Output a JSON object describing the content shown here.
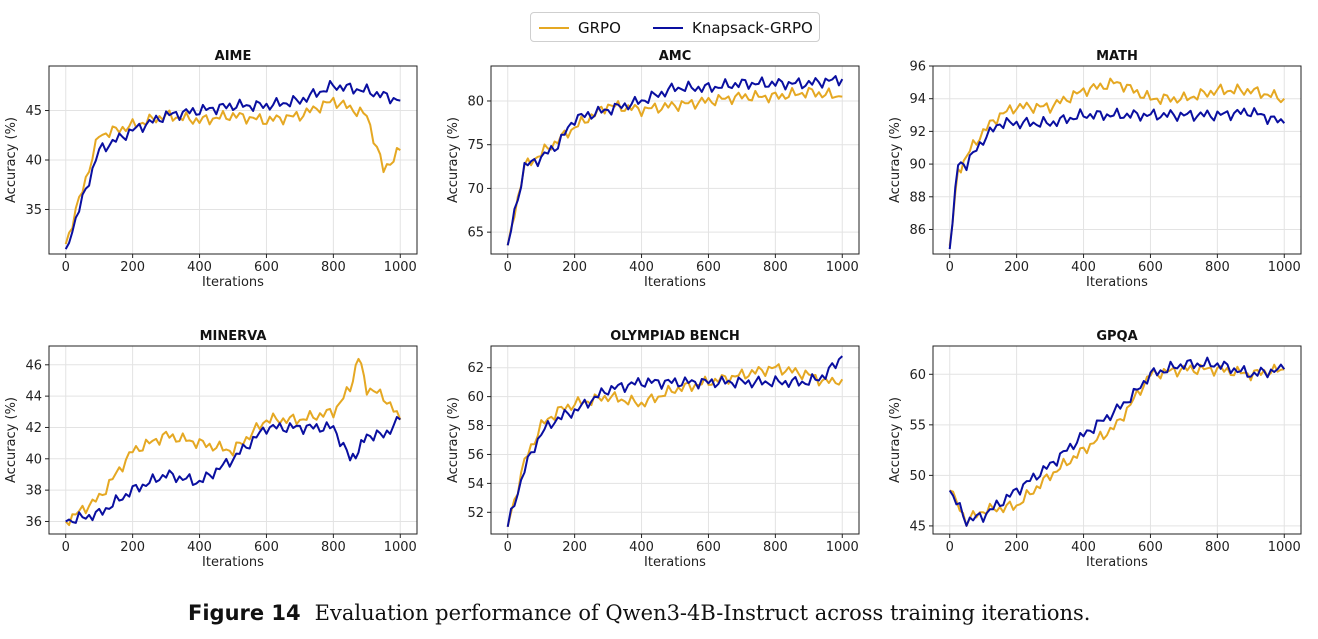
{
  "legend": {
    "items": [
      {
        "label": "GRPO",
        "color": "#E5A823"
      },
      {
        "label": "Knapsack-GRPO",
        "color": "#0A0FA0"
      }
    ]
  },
  "caption": {
    "label": "Figure 14",
    "text": "Evaluation performance of Qwen3-4B-Instruct across training iterations."
  },
  "chart_data": [
    {
      "type": "line",
      "title": "AIME",
      "xlabel": "Iterations",
      "ylabel": "Accuracy (%)",
      "xlim": [
        -50,
        1050
      ],
      "ylim": [
        30.5,
        49.5
      ],
      "xticks": [
        0,
        200,
        400,
        600,
        800,
        1000
      ],
      "yticks": [
        35,
        40,
        45
      ],
      "x": [
        0,
        100,
        200,
        300,
        400,
        500,
        600,
        700,
        800,
        900,
        950,
        1000
      ],
      "series": [
        {
          "name": "GRPO",
          "values": [
            31.5,
            42.5,
            43.5,
            44.5,
            44.0,
            44.5,
            44.0,
            44.5,
            46.0,
            44.5,
            39.0,
            41.0
          ]
        },
        {
          "name": "Knapsack-GRPO",
          "values": [
            31.0,
            41.0,
            43.0,
            44.5,
            45.0,
            45.5,
            45.5,
            46.0,
            47.5,
            47.0,
            46.5,
            46.0
          ]
        }
      ]
    },
    {
      "type": "line",
      "title": "AMC",
      "xlabel": "Iterations",
      "ylabel": "Accuracy (%)",
      "xlim": [
        -50,
        1050
      ],
      "ylim": [
        62.5,
        84.0
      ],
      "xticks": [
        0,
        200,
        400,
        600,
        800,
        1000
      ],
      "yticks": [
        65,
        70,
        75,
        80
      ],
      "x": [
        0,
        50,
        100,
        150,
        200,
        300,
        400,
        500,
        600,
        700,
        800,
        900,
        1000
      ],
      "series": [
        {
          "name": "GRPO",
          "values": [
            63.5,
            72.5,
            74.0,
            75.5,
            77.0,
            79.5,
            79.0,
            79.5,
            80.0,
            80.5,
            80.5,
            81.0,
            80.5
          ]
        },
        {
          "name": "Knapsack-GRPO",
          "values": [
            63.5,
            72.5,
            73.5,
            75.0,
            78.0,
            79.0,
            80.0,
            81.5,
            81.5,
            82.0,
            82.0,
            82.0,
            82.5
          ]
        }
      ]
    },
    {
      "type": "line",
      "title": "MATH",
      "xlabel": "Iterations",
      "ylabel": "Accuracy (%)",
      "xlim": [
        -50,
        1050
      ],
      "ylim": [
        84.5,
        96.0
      ],
      "xticks": [
        0,
        200,
        400,
        600,
        800,
        1000
      ],
      "yticks": [
        86,
        88,
        90,
        92,
        94,
        96
      ],
      "x": [
        0,
        25,
        50,
        100,
        150,
        200,
        300,
        400,
        500,
        600,
        700,
        800,
        900,
        1000
      ],
      "series": [
        {
          "name": "GRPO",
          "values": [
            85.0,
            89.5,
            90.5,
            92.0,
            93.0,
            93.5,
            93.5,
            94.5,
            95.0,
            94.0,
            94.0,
            94.5,
            94.5,
            94.0
          ]
        },
        {
          "name": "Knapsack-GRPO",
          "values": [
            84.8,
            90.0,
            90.0,
            91.5,
            92.5,
            92.5,
            92.5,
            93.0,
            93.0,
            93.0,
            93.0,
            93.0,
            93.2,
            92.5
          ]
        }
      ]
    },
    {
      "type": "line",
      "title": "MINERVA",
      "xlabel": "Iterations",
      "ylabel": "Accuracy (%)",
      "xlim": [
        -50,
        1050
      ],
      "ylim": [
        35.2,
        47.2
      ],
      "xticks": [
        0,
        200,
        400,
        600,
        800,
        1000
      ],
      "yticks": [
        36,
        38,
        40,
        42,
        44,
        46
      ],
      "x": [
        0,
        100,
        200,
        300,
        400,
        500,
        600,
        700,
        800,
        850,
        875,
        900,
        950,
        1000
      ],
      "series": [
        {
          "name": "GRPO",
          "values": [
            36.0,
            37.5,
            40.5,
            41.5,
            41.0,
            40.5,
            42.5,
            42.5,
            43.0,
            44.5,
            46.5,
            44.5,
            44.0,
            42.5
          ]
        },
        {
          "name": "Knapsack-GRPO",
          "values": [
            36.0,
            36.5,
            38.0,
            39.0,
            38.5,
            40.0,
            42.0,
            42.0,
            42.0,
            40.0,
            40.5,
            41.5,
            41.5,
            42.5
          ]
        }
      ]
    },
    {
      "type": "line",
      "title": "OLYMPIAD BENCH",
      "xlabel": "Iterations",
      "ylabel": "Accuracy (%)",
      "xlim": [
        -50,
        1050
      ],
      "ylim": [
        50.5,
        63.5
      ],
      "xticks": [
        0,
        200,
        400,
        600,
        800,
        1000
      ],
      "yticks": [
        52,
        54,
        56,
        58,
        60,
        62
      ],
      "x": [
        0,
        50,
        100,
        150,
        200,
        300,
        400,
        500,
        600,
        700,
        800,
        900,
        950,
        1000
      ],
      "series": [
        {
          "name": "GRPO",
          "values": [
            51.0,
            55.5,
            58.0,
            59.0,
            59.5,
            60.0,
            59.5,
            60.5,
            61.0,
            61.5,
            62.0,
            61.5,
            61.0,
            61.2
          ]
        },
        {
          "name": "Knapsack-GRPO",
          "values": [
            51.0,
            55.0,
            57.5,
            58.5,
            59.0,
            60.5,
            61.0,
            61.0,
            61.0,
            61.0,
            61.0,
            61.0,
            61.5,
            62.8
          ]
        }
      ]
    },
    {
      "type": "line",
      "title": "GPQA",
      "xlabel": "Iterations",
      "ylabel": "Accuracy (%)",
      "xlim": [
        -50,
        1050
      ],
      "ylim": [
        44.2,
        62.8
      ],
      "xticks": [
        0,
        200,
        400,
        600,
        800,
        1000
      ],
      "yticks": [
        45,
        50,
        55,
        60
      ],
      "x": [
        0,
        50,
        100,
        200,
        300,
        400,
        500,
        550,
        600,
        700,
        800,
        900,
        1000
      ],
      "series": [
        {
          "name": "GRPO",
          "values": [
            48.5,
            45.5,
            46.5,
            47.0,
            50.0,
            52.5,
            55.0,
            57.5,
            60.0,
            60.5,
            60.5,
            60.0,
            60.5
          ]
        },
        {
          "name": "Knapsack-GRPO",
          "values": [
            48.5,
            45.5,
            46.0,
            48.5,
            51.0,
            54.0,
            56.5,
            58.0,
            60.0,
            61.0,
            61.0,
            60.0,
            60.5
          ]
        }
      ]
    }
  ]
}
